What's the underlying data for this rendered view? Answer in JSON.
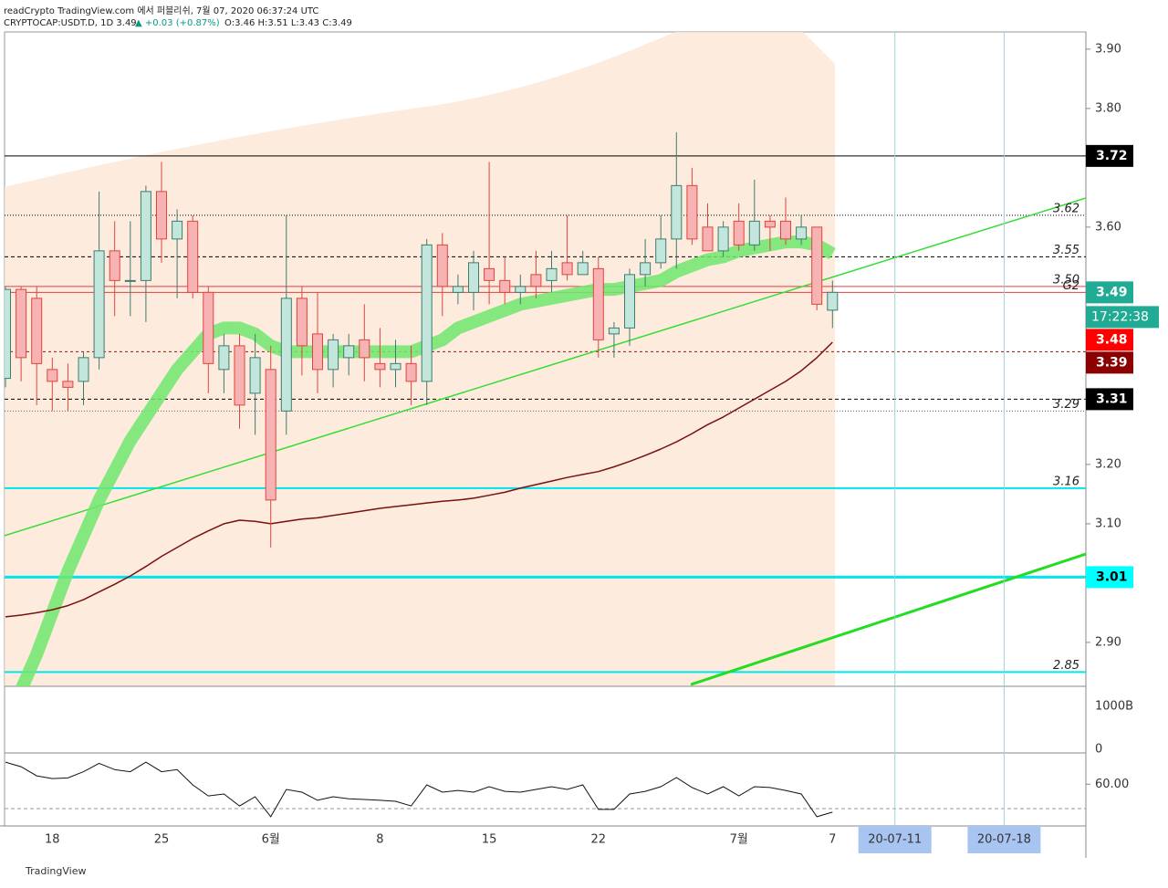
{
  "header": {
    "line1": "readCrypto TradingView.com 에서 퍼블리쉬, 7월 07, 2020 06:37:24 UTC",
    "line2": [
      "CRYPTOCAP:USDT.D, 1D 3.49",
      "▲ +0.03 (+0.87%)",
      "O:3.46 H:3.51 L:3.43 C:3.49"
    ]
  },
  "chart_data": [
    {
      "type": "candlestick",
      "ylim": [
        2.826,
        3.929
      ],
      "yticks": [
        {
          "value": 3.9,
          "label": "3.90"
        },
        {
          "value": 3.8,
          "label": "3.80"
        },
        {
          "value": 3.6,
          "label": "3.60"
        },
        {
          "value": 3.2,
          "label": "3.20"
        },
        {
          "value": 3.1,
          "label": "3.10"
        },
        {
          "value": 2.9,
          "label": "2.90"
        }
      ],
      "categories": [
        null,
        null,
        null,
        "18",
        null,
        null,
        null,
        null,
        null,
        null,
        "25",
        null,
        null,
        null,
        null,
        null,
        null,
        "6월",
        null,
        null,
        null,
        null,
        null,
        null,
        "8",
        null,
        null,
        null,
        null,
        null,
        null,
        "15",
        null,
        null,
        null,
        null,
        null,
        null,
        "22",
        null,
        null,
        null,
        null,
        null,
        null,
        null,
        null,
        "7월",
        null,
        null,
        null,
        null,
        null,
        "7",
        null,
        null,
        null,
        "20-07-11",
        null,
        null,
        null,
        null,
        null,
        null,
        "20-07-18",
        null,
        null,
        null,
        null,
        null
      ],
      "open": [
        3.345,
        3.495,
        3.48,
        3.36,
        3.34,
        3.34,
        3.38,
        3.56,
        3.51,
        3.51,
        3.66,
        3.58,
        3.61,
        3.49,
        3.36,
        3.4,
        3.32,
        3.36,
        3.29,
        3.48,
        3.42,
        3.36,
        3.38,
        3.41,
        3.37,
        3.36,
        3.37,
        3.34,
        3.57,
        3.49,
        3.49,
        3.53,
        3.51,
        3.49,
        3.52,
        3.51,
        3.54,
        3.52,
        3.53,
        3.42,
        3.43,
        3.52,
        3.54,
        3.58,
        3.67,
        3.6,
        3.56,
        3.61,
        3.57,
        3.61,
        3.61,
        3.58,
        3.6,
        3.46,
        null,
        null,
        null,
        null,
        null,
        null,
        null,
        null,
        null,
        null,
        null,
        null,
        null,
        null,
        null,
        null
      ],
      "high": [
        3.5,
        3.5,
        3.5,
        3.38,
        3.37,
        3.39,
        3.66,
        3.61,
        3.61,
        3.67,
        3.71,
        3.63,
        3.62,
        3.5,
        3.42,
        3.42,
        3.42,
        3.4,
        3.62,
        3.5,
        3.49,
        3.42,
        3.42,
        3.47,
        3.43,
        3.41,
        3.4,
        3.58,
        3.59,
        3.52,
        3.56,
        3.71,
        3.55,
        3.52,
        3.56,
        3.56,
        3.62,
        3.56,
        3.55,
        3.44,
        3.53,
        3.58,
        3.62,
        3.76,
        3.7,
        3.64,
        3.61,
        3.64,
        3.68,
        3.62,
        3.65,
        3.62,
        3.6,
        3.51,
        null,
        null,
        null,
        null,
        null,
        null,
        null,
        null,
        null,
        null,
        null,
        null,
        null,
        null,
        null,
        null
      ],
      "low": [
        3.33,
        3.34,
        3.3,
        3.29,
        3.29,
        3.3,
        3.36,
        3.45,
        3.45,
        3.44,
        3.54,
        3.48,
        3.48,
        3.32,
        3.32,
        3.26,
        3.25,
        3.06,
        3.25,
        3.35,
        3.32,
        3.33,
        3.35,
        3.34,
        3.33,
        3.33,
        3.3,
        3.3,
        3.45,
        3.47,
        3.46,
        3.47,
        3.47,
        3.47,
        3.48,
        3.49,
        3.51,
        3.52,
        3.38,
        3.38,
        3.4,
        3.5,
        3.53,
        3.53,
        3.57,
        3.56,
        3.55,
        3.56,
        3.56,
        3.56,
        3.57,
        3.57,
        3.46,
        3.43,
        null,
        null,
        null,
        null,
        null,
        null,
        null,
        null,
        null,
        null,
        null,
        null,
        null,
        null,
        null,
        null
      ],
      "close": [
        3.495,
        3.38,
        3.37,
        3.34,
        3.33,
        3.38,
        3.56,
        3.51,
        3.51,
        3.66,
        3.58,
        3.61,
        3.49,
        3.37,
        3.4,
        3.3,
        3.38,
        3.14,
        3.48,
        3.4,
        3.36,
        3.41,
        3.4,
        3.38,
        3.36,
        3.37,
        3.34,
        3.57,
        3.5,
        3.5,
        3.54,
        3.51,
        3.49,
        3.5,
        3.5,
        3.53,
        3.52,
        3.54,
        3.41,
        3.43,
        3.52,
        3.54,
        3.58,
        3.67,
        3.58,
        3.56,
        3.6,
        3.57,
        3.61,
        3.6,
        3.58,
        3.6,
        3.47,
        3.49,
        null,
        null,
        null,
        null,
        null,
        null,
        null,
        null,
        null,
        null,
        null,
        null,
        null,
        null,
        null,
        null
      ],
      "up_color": "#c2e6dc",
      "up_border": "#3d7d6e",
      "down_color": "#f7b3b3",
      "down_border": "#e0443c",
      "overlays": [
        {
          "color": "#6ee86e",
          "width": 14,
          "values": [
            2.78,
            2.82,
            2.88,
            2.95,
            3.02,
            3.08,
            3.14,
            3.19,
            3.24,
            3.28,
            3.32,
            3.36,
            3.39,
            3.42,
            3.43,
            3.43,
            3.42,
            3.4,
            3.39,
            3.39,
            3.39,
            3.39,
            3.39,
            3.39,
            3.39,
            3.39,
            3.39,
            3.4,
            3.41,
            3.43,
            3.44,
            3.45,
            3.46,
            3.47,
            3.475,
            3.48,
            3.485,
            3.49,
            3.495,
            3.495,
            3.5,
            3.505,
            3.51,
            3.525,
            3.535,
            3.545,
            3.55,
            3.56,
            3.565,
            3.57,
            3.575,
            3.575,
            3.57,
            3.555,
            null,
            null,
            null,
            null,
            null,
            null,
            null,
            null,
            null,
            null,
            null,
            null,
            null,
            null,
            null,
            null
          ]
        },
        {
          "color": "#7a1010",
          "width": 1.5,
          "values": [
            2.943,
            2.946,
            2.95,
            2.955,
            2.962,
            2.972,
            2.985,
            2.998,
            3.012,
            3.028,
            3.045,
            3.06,
            3.075,
            3.088,
            3.1,
            3.106,
            3.104,
            3.1,
            3.104,
            3.108,
            3.11,
            3.114,
            3.118,
            3.122,
            3.126,
            3.129,
            3.132,
            3.135,
            3.138,
            3.14,
            3.143,
            3.148,
            3.153,
            3.16,
            3.166,
            3.172,
            3.178,
            3.183,
            3.188,
            3.196,
            3.205,
            3.215,
            3.226,
            3.238,
            3.252,
            3.267,
            3.28,
            3.295,
            3.31,
            3.325,
            3.34,
            3.358,
            3.38,
            3.406,
            null,
            null,
            null,
            null,
            null,
            null,
            null,
            null,
            null,
            null,
            null,
            null,
            null,
            null,
            null,
            null
          ]
        }
      ],
      "trendlines": [
        {
          "color": "#33dd33",
          "width": 1.5,
          "x": [
            -0.06,
            69.24
          ],
          "y": [
            3.08,
            3.649
          ]
        },
        {
          "color": "#22dd22",
          "width": 3,
          "x": [
            43.92,
            69.24
          ],
          "y": [
            2.829,
            3.049
          ]
        }
      ],
      "levels": [
        {
          "value": 3.72,
          "color": "#000000",
          "width": 1
        },
        {
          "value": 3.62,
          "color": "#000000",
          "width": 1,
          "dash": "1,2",
          "tag": true
        },
        {
          "value": 3.55,
          "color": "#000000",
          "width": 1,
          "dash": "4,3",
          "tag": true
        },
        {
          "value": 3.5,
          "label": "3.50",
          "color": "#e04040",
          "width": 1
        },
        {
          "value": 3.49,
          "label": "G2",
          "color": "#e04040",
          "width": 1
        },
        {
          "value": 3.39,
          "color": "#8b1a1a",
          "width": 1,
          "dash": "3,3"
        },
        {
          "value": 3.31,
          "color": "#000000",
          "width": 1,
          "dash": "4,3"
        },
        {
          "value": 3.29,
          "color": "#666666",
          "width": 1,
          "dash": "1,2",
          "tag": true
        },
        {
          "value": 3.16,
          "color": "#00e5ee",
          "width": 2,
          "tag": true
        },
        {
          "value": 3.01,
          "color": "#00e5ee",
          "width": 3
        },
        {
          "value": 2.85,
          "color": "#00e5ee",
          "width": 2,
          "tag": true
        }
      ],
      "badges": [
        {
          "value": 3.72,
          "bg": "#000000",
          "fg": "#ffffff"
        },
        {
          "value": 3.49,
          "bg": "#22ab94",
          "fg": "#ffffff",
          "countdown": "17:22:38"
        },
        {
          "value": 3.48,
          "bg": "#ff0000",
          "fg": "#ffffff"
        },
        {
          "value": 3.39,
          "bg": "#8b0000",
          "fg": "#ffffff"
        },
        {
          "value": 3.31,
          "bg": "#000000",
          "fg": "#ffffff"
        },
        {
          "value": 3.01,
          "bg": "#00ffff",
          "fg": "#000000"
        }
      ],
      "highlight_color": "#a8c4f0"
    },
    {
      "type": "line",
      "color": "#111111",
      "ylim": [
        40,
        75
      ],
      "yticks": [
        {
          "value": 60,
          "label": "60.00"
        }
      ],
      "values": [
        70.6,
        68.4,
        64,
        62.7,
        63,
        66,
        70,
        67,
        66,
        70.6,
        66,
        67,
        59.7,
        54.4,
        55.3,
        49.6,
        54,
        44.4,
        57.5,
        56.2,
        52.3,
        54,
        53,
        52.7,
        52.3,
        51.8,
        49.6,
        59.7,
        56.2,
        57,
        56.2,
        58.8,
        56.6,
        56.2,
        57.5,
        58.8,
        57.5,
        59.7,
        47.9,
        47.9,
        55.3,
        56.6,
        58.8,
        63.2,
        58.4,
        55.3,
        58.8,
        54.4,
        58.8,
        58.4,
        57,
        55.3,
        44.4,
        46.6,
        null,
        null,
        null,
        null,
        null,
        null,
        null,
        null,
        null,
        null,
        null,
        null,
        null,
        null,
        null,
        null
      ]
    }
  ],
  "volume_pane": {
    "labels": [
      "1000B",
      "0"
    ]
  },
  "footer": "TradingView"
}
